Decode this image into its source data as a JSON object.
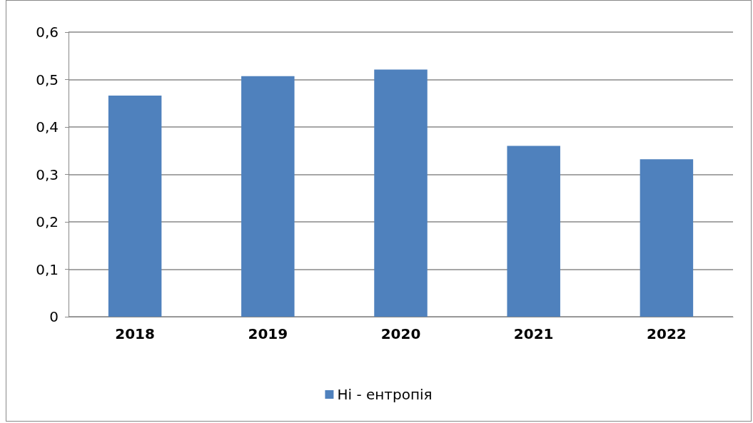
{
  "chart_data": {
    "type": "bar",
    "categories": [
      "2018",
      "2019",
      "2020",
      "2021",
      "2022"
    ],
    "series": [
      {
        "name": "Ні - ентропія",
        "color": "#4f81bd",
        "values": [
          0.466,
          0.507,
          0.521,
          0.36,
          0.332
        ]
      }
    ],
    "ylim": [
      0,
      0.6
    ],
    "yticks": [
      {
        "value": 0,
        "label": "0"
      },
      {
        "value": 0.1,
        "label": "0,1"
      },
      {
        "value": 0.2,
        "label": "0,2"
      },
      {
        "value": 0.3,
        "label": "0,3"
      },
      {
        "value": 0.4,
        "label": "0,4"
      },
      {
        "value": 0.5,
        "label": "0,5"
      },
      {
        "value": 0.6,
        "label": "0,6"
      }
    ],
    "grid": "y",
    "legend": "bottom"
  }
}
